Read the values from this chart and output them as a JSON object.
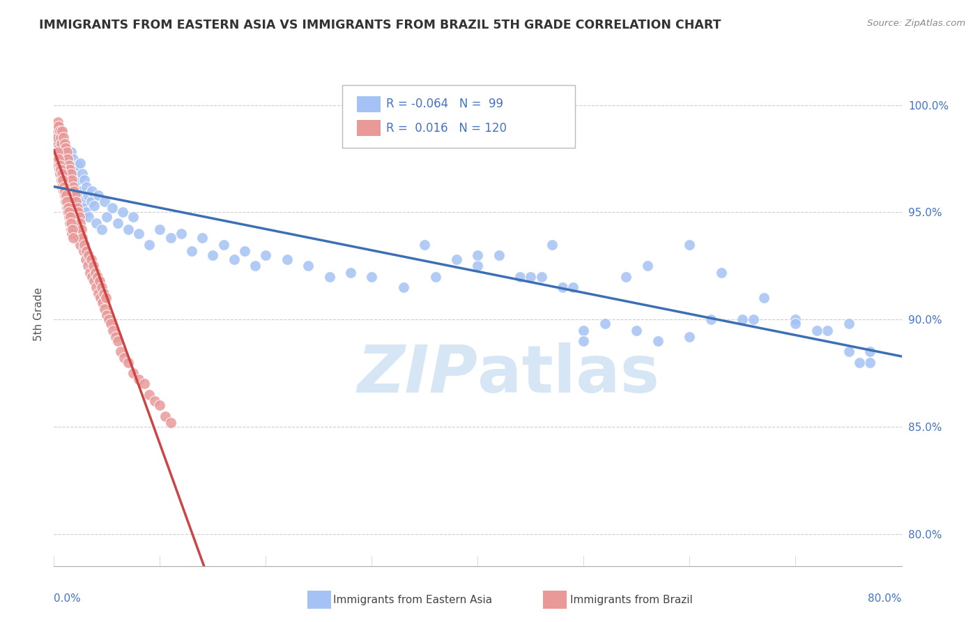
{
  "title": "IMMIGRANTS FROM EASTERN ASIA VS IMMIGRANTS FROM BRAZIL 5TH GRADE CORRELATION CHART",
  "source": "Source: ZipAtlas.com",
  "ylabel": "5th Grade",
  "yticks": [
    80.0,
    85.0,
    90.0,
    95.0,
    100.0
  ],
  "ytick_labels": [
    "80.0%",
    "85.0%",
    "90.0%",
    "95.0%",
    "100.0%"
  ],
  "xmin": 0.0,
  "xmax": 80.0,
  "ymin": 78.5,
  "ymax": 102.0,
  "legend_R1": "-0.064",
  "legend_N1": "99",
  "legend_R2": "0.016",
  "legend_N2": "120",
  "blue_color": "#a4c2f4",
  "pink_color": "#ea9999",
  "blue_line_color": "#3d6fb5",
  "pink_line_color": "#cc4444",
  "pink_line_solid_end": 30.0,
  "watermark_color": "#cfe2f3",
  "blue_scatter_x": [
    0.2,
    0.3,
    0.4,
    0.5,
    0.6,
    0.7,
    0.8,
    0.9,
    1.0,
    1.1,
    1.2,
    1.3,
    1.4,
    1.5,
    1.6,
    1.7,
    1.8,
    1.9,
    2.0,
    2.1,
    2.2,
    2.3,
    2.4,
    2.5,
    2.6,
    2.7,
    2.8,
    2.9,
    3.0,
    3.1,
    3.2,
    3.3,
    3.5,
    3.6,
    3.8,
    4.0,
    4.2,
    4.5,
    4.8,
    5.0,
    5.5,
    6.0,
    6.5,
    7.0,
    7.5,
    8.0,
    9.0,
    10.0,
    11.0,
    12.0,
    13.0,
    14.0,
    15.0,
    16.0,
    17.0,
    18.0,
    19.0,
    20.0,
    22.0,
    24.0,
    26.0,
    28.0,
    30.0,
    33.0,
    36.0,
    40.0,
    44.0,
    47.0,
    50.0,
    54.0,
    57.0,
    60.0,
    63.0,
    66.0,
    70.0,
    73.0,
    75.0,
    77.0,
    50.0,
    55.0,
    60.0,
    65.0,
    70.0,
    75.0,
    77.0,
    40.0,
    45.0,
    48.0,
    52.0,
    56.0,
    62.0,
    67.0,
    72.0,
    76.0,
    35.0,
    38.0,
    42.0,
    46.0,
    49.0
  ],
  "blue_scatter_y": [
    97.8,
    98.5,
    98.0,
    97.5,
    98.2,
    97.0,
    98.8,
    97.3,
    97.0,
    98.0,
    96.8,
    97.5,
    97.2,
    96.5,
    97.8,
    96.0,
    97.5,
    96.2,
    97.0,
    95.8,
    97.2,
    96.5,
    96.0,
    97.3,
    95.5,
    96.8,
    95.2,
    96.5,
    95.0,
    96.2,
    95.8,
    94.8,
    95.5,
    96.0,
    95.3,
    94.5,
    95.8,
    94.2,
    95.5,
    94.8,
    95.2,
    94.5,
    95.0,
    94.2,
    94.8,
    94.0,
    93.5,
    94.2,
    93.8,
    94.0,
    93.2,
    93.8,
    93.0,
    93.5,
    92.8,
    93.2,
    92.5,
    93.0,
    92.8,
    92.5,
    92.0,
    92.2,
    92.0,
    91.5,
    92.0,
    92.5,
    92.0,
    93.5,
    89.5,
    92.0,
    89.0,
    93.5,
    92.2,
    90.0,
    90.0,
    89.5,
    89.8,
    88.5,
    89.0,
    89.5,
    89.2,
    90.0,
    89.8,
    88.5,
    88.0,
    93.0,
    92.0,
    91.5,
    89.8,
    92.5,
    90.0,
    91.0,
    89.5,
    88.0,
    93.5,
    92.8,
    93.0,
    92.0,
    91.5
  ],
  "pink_scatter_x": [
    0.15,
    0.2,
    0.25,
    0.3,
    0.35,
    0.4,
    0.45,
    0.5,
    0.55,
    0.6,
    0.65,
    0.7,
    0.75,
    0.8,
    0.85,
    0.9,
    0.95,
    1.0,
    1.05,
    1.1,
    1.15,
    1.2,
    1.25,
    1.3,
    1.35,
    1.4,
    1.45,
    1.5,
    1.55,
    1.6,
    1.65,
    1.7,
    1.75,
    1.8,
    1.85,
    1.9,
    1.95,
    2.0,
    2.05,
    2.1,
    2.15,
    2.2,
    2.25,
    2.3,
    2.35,
    2.4,
    2.45,
    2.5,
    2.6,
    2.7,
    2.8,
    2.9,
    3.0,
    3.1,
    3.2,
    3.3,
    3.4,
    3.5,
    3.6,
    3.7,
    3.8,
    3.9,
    4.0,
    4.1,
    4.2,
    4.3,
    4.4,
    4.5,
    4.6,
    4.7,
    4.8,
    4.9,
    5.0,
    5.2,
    5.4,
    5.6,
    5.8,
    6.0,
    6.3,
    6.6,
    7.0,
    7.5,
    8.0,
    8.5,
    9.0,
    9.5,
    10.0,
    10.5,
    11.0,
    0.3,
    0.35,
    0.4,
    0.45,
    0.5,
    0.55,
    0.6,
    0.65,
    0.7,
    0.75,
    0.8,
    0.85,
    0.9,
    0.95,
    1.0,
    1.05,
    1.1,
    1.15,
    1.2,
    1.25,
    1.3,
    1.35,
    1.4,
    1.45,
    1.5,
    1.55,
    1.6,
    1.65,
    1.7,
    1.75,
    1.8
  ],
  "pink_scatter_y": [
    98.5,
    99.0,
    98.8,
    98.2,
    99.2,
    98.5,
    99.0,
    98.0,
    98.8,
    97.5,
    98.5,
    98.2,
    97.8,
    98.8,
    97.5,
    98.5,
    97.2,
    98.2,
    97.0,
    98.0,
    96.8,
    97.8,
    96.5,
    97.5,
    96.2,
    97.2,
    96.0,
    97.0,
    95.8,
    96.8,
    95.5,
    96.5,
    95.2,
    96.2,
    95.0,
    96.0,
    94.8,
    95.8,
    94.5,
    95.5,
    94.2,
    95.2,
    94.0,
    95.0,
    93.8,
    94.8,
    93.5,
    94.5,
    94.2,
    93.8,
    93.2,
    93.5,
    92.8,
    93.2,
    92.5,
    93.0,
    92.2,
    92.8,
    92.0,
    92.5,
    91.8,
    92.2,
    91.5,
    92.0,
    91.2,
    91.8,
    91.0,
    91.5,
    90.8,
    91.2,
    90.5,
    91.0,
    90.2,
    90.0,
    89.8,
    89.5,
    89.2,
    89.0,
    88.5,
    88.2,
    88.0,
    87.5,
    87.2,
    87.0,
    86.5,
    86.2,
    86.0,
    85.5,
    85.2,
    97.5,
    97.8,
    97.2,
    97.5,
    97.0,
    97.2,
    96.8,
    97.0,
    96.5,
    96.8,
    96.2,
    96.5,
    96.0,
    96.2,
    95.8,
    96.0,
    95.5,
    95.8,
    95.2,
    95.5,
    95.0,
    95.2,
    94.8,
    95.0,
    94.5,
    94.8,
    94.2,
    94.5,
    94.0,
    94.2,
    93.8
  ]
}
